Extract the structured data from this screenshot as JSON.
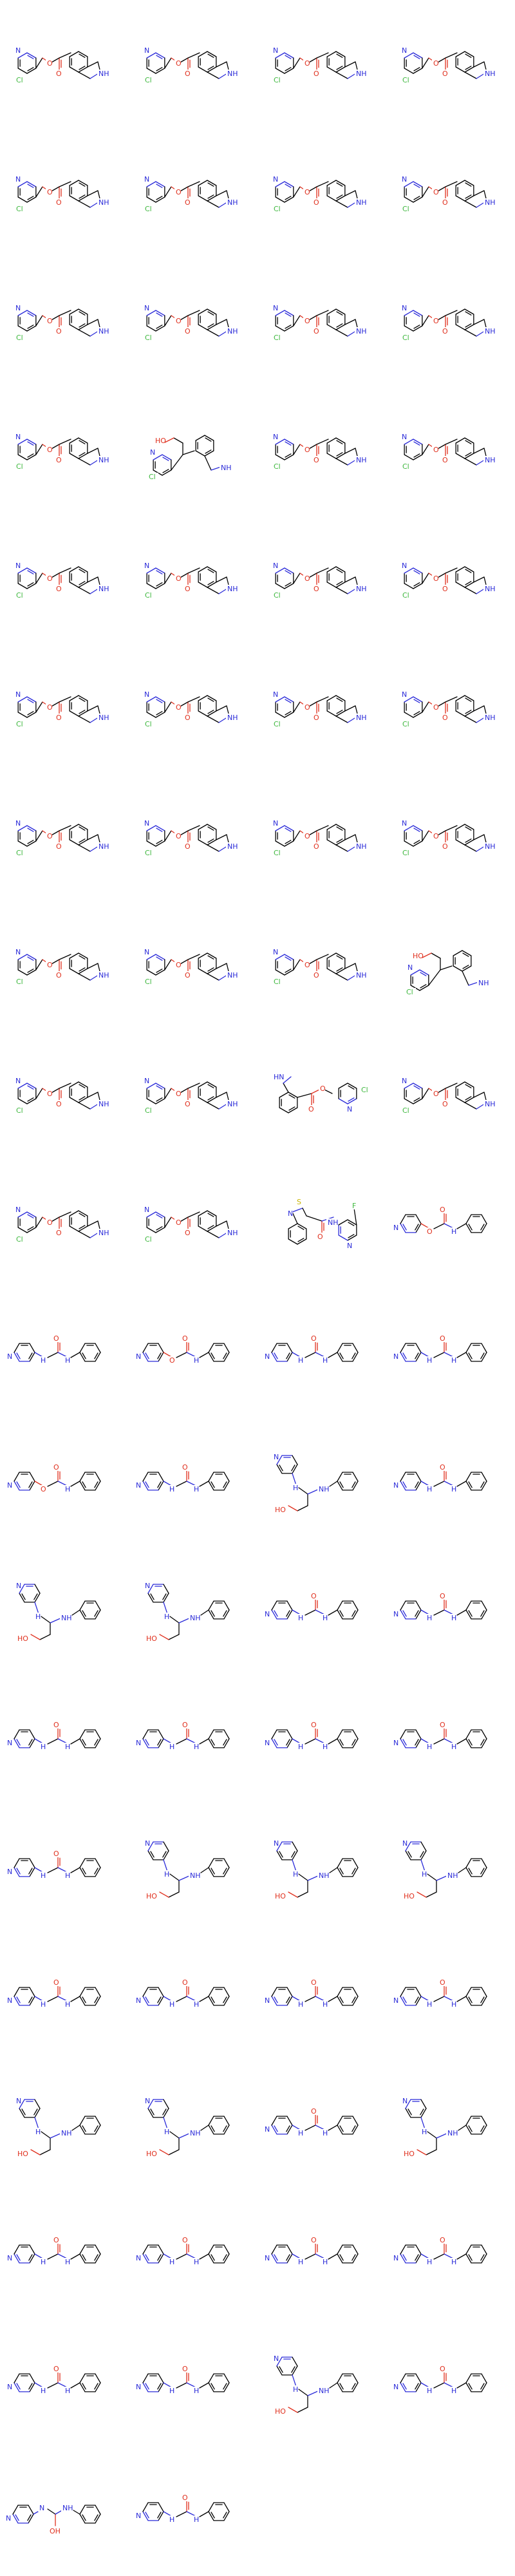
{
  "title": "",
  "grid": {
    "columns": 4,
    "rows": 20
  },
  "atom_colors": {
    "C": "#000000",
    "N": "#2b2bd9",
    "O": "#e0301e",
    "Cl": "#3fb83f",
    "S": "#c8b400",
    "F": "#3fb83f"
  },
  "molecules": [
    {
      "type": "ester"
    },
    {
      "type": "ester"
    },
    {
      "type": "ester"
    },
    {
      "type": "ester"
    },
    {
      "type": "ester"
    },
    {
      "type": "ester"
    },
    {
      "type": "ester"
    },
    {
      "type": "ester"
    },
    {
      "type": "ester"
    },
    {
      "type": "ester"
    },
    {
      "type": "ester"
    },
    {
      "type": "ester"
    },
    {
      "type": "ester"
    },
    {
      "type": "alcohol"
    },
    {
      "type": "ester"
    },
    {
      "type": "ester"
    },
    {
      "type": "ester"
    },
    {
      "type": "ester"
    },
    {
      "type": "ester"
    },
    {
      "type": "ester"
    },
    {
      "type": "ester"
    },
    {
      "type": "ester"
    },
    {
      "type": "ester"
    },
    {
      "type": "ester"
    },
    {
      "type": "ester"
    },
    {
      "type": "ester"
    },
    {
      "type": "ester"
    },
    {
      "type": "ester"
    },
    {
      "type": "ester"
    },
    {
      "type": "ester"
    },
    {
      "type": "ester"
    },
    {
      "type": "alcohol"
    },
    {
      "type": "ester"
    },
    {
      "type": "ester"
    },
    {
      "type": "ester_rev"
    },
    {
      "type": "ester"
    },
    {
      "type": "ester"
    },
    {
      "type": "ester"
    },
    {
      "type": "bicyclic"
    },
    {
      "type": "carbamate"
    },
    {
      "type": "urea"
    },
    {
      "type": "carbamate"
    },
    {
      "type": "urea"
    },
    {
      "type": "urea"
    },
    {
      "type": "carbamate"
    },
    {
      "type": "urea"
    },
    {
      "type": "aminoalcohol"
    },
    {
      "type": "urea"
    },
    {
      "type": "aminoalcohol"
    },
    {
      "type": "aminoalcohol"
    },
    {
      "type": "urea"
    },
    {
      "type": "urea"
    },
    {
      "type": "urea"
    },
    {
      "type": "urea"
    },
    {
      "type": "urea"
    },
    {
      "type": "urea"
    },
    {
      "type": "urea"
    },
    {
      "type": "aminoalcohol"
    },
    {
      "type": "aminoalcohol"
    },
    {
      "type": "aminoalcohol"
    },
    {
      "type": "urea"
    },
    {
      "type": "urea"
    },
    {
      "type": "urea"
    },
    {
      "type": "urea"
    },
    {
      "type": "aminoalcohol"
    },
    {
      "type": "aminoalcohol"
    },
    {
      "type": "urea"
    },
    {
      "type": "aminoalcohol"
    },
    {
      "type": "urea"
    },
    {
      "type": "urea"
    },
    {
      "type": "urea"
    },
    {
      "type": "urea"
    },
    {
      "type": "urea"
    },
    {
      "type": "urea"
    },
    {
      "type": "aminoalcohol"
    },
    {
      "type": "urea"
    },
    {
      "type": "hemiaminal"
    },
    {
      "type": "urea"
    }
  ]
}
